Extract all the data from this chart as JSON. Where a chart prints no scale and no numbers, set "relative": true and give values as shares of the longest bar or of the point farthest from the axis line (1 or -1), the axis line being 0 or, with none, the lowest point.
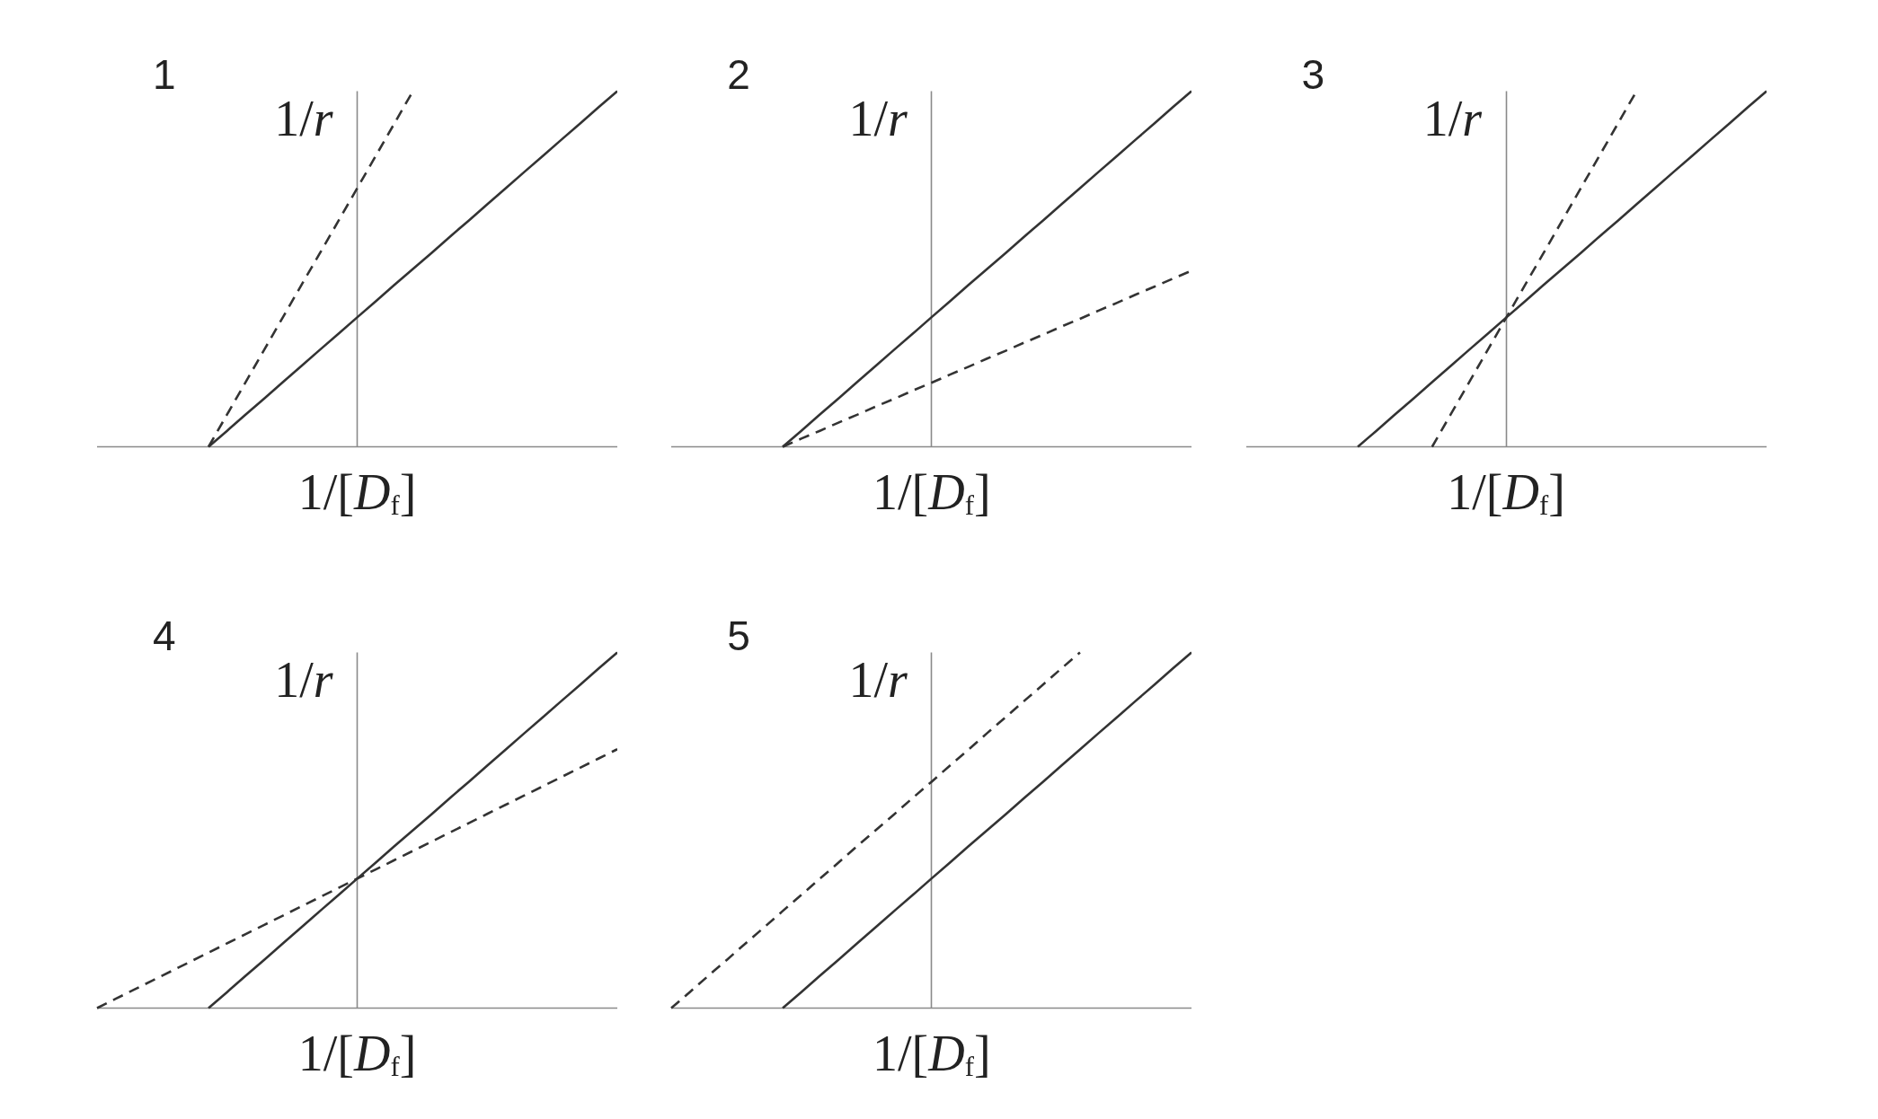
{
  "chart_data": [
    {
      "type": "line",
      "title": "1",
      "xlabel": "1/[D$_{f}$]",
      "ylabel": "1/r",
      "relative": true,
      "marker": "none",
      "categories": [
        null,
        null,
        null,
        null,
        null,
        null,
        null,
        null,
        null,
        null,
        null,
        null,
        null,
        null,
        null,
        null,
        null,
        null,
        null,
        null,
        null,
        null,
        null,
        null,
        null,
        null,
        null,
        null,
        null
      ],
      "series": [
        {
          "color": "#333333",
          "line_style": "solid",
          "values": [
            null,
            null,
            null,
            null,
            null,
            null,
            0,
            0.045,
            0.091,
            0.136,
            0.182,
            0.227,
            0.273,
            0.318,
            0.364,
            0.409,
            0.455,
            0.5,
            0.545,
            0.591,
            0.636,
            0.682,
            0.727,
            0.773,
            0.818,
            0.864,
            0.909,
            0.955,
            1
          ]
        },
        {
          "color": "#333333",
          "line_style": "dashed",
          "values": [
            null,
            null,
            null,
            null,
            null,
            null,
            0,
            0.091,
            0.182,
            0.273,
            0.364,
            0.455,
            0.545,
            0.636,
            0.727,
            0.818,
            0.909,
            1,
            null,
            null,
            null,
            null,
            null,
            null,
            null,
            null,
            null,
            null,
            null
          ]
        }
      ]
    },
    {
      "type": "line",
      "title": "2",
      "xlabel": "1/[D$_{f}$]",
      "ylabel": "1/r",
      "relative": true,
      "marker": "none",
      "categories": [
        null,
        null,
        null,
        null,
        null,
        null,
        null,
        null,
        null,
        null,
        null,
        null,
        null,
        null,
        null,
        null,
        null,
        null,
        null,
        null,
        null,
        null,
        null,
        null,
        null,
        null,
        null,
        null,
        null
      ],
      "series": [
        {
          "color": "#333333",
          "line_style": "solid",
          "values": [
            null,
            null,
            null,
            null,
            null,
            null,
            0,
            0.045,
            0.091,
            0.136,
            0.182,
            0.227,
            0.273,
            0.318,
            0.364,
            0.409,
            0.455,
            0.5,
            0.545,
            0.591,
            0.636,
            0.682,
            0.727,
            0.773,
            0.818,
            0.864,
            0.909,
            0.955,
            1
          ]
        },
        {
          "color": "#333333",
          "line_style": "dashed",
          "values": [
            null,
            null,
            null,
            null,
            null,
            null,
            0,
            0.023,
            0.045,
            0.068,
            0.09,
            0.113,
            0.135,
            0.158,
            0.18,
            0.203,
            0.225,
            0.248,
            0.27,
            0.293,
            0.315,
            0.338,
            0.36,
            0.383,
            0.405,
            0.428,
            0.45,
            0.473,
            0.495
          ]
        }
      ]
    },
    {
      "type": "line",
      "title": "3",
      "xlabel": "1/[D$_{f}$]",
      "ylabel": "1/r",
      "relative": true,
      "marker": "none",
      "categories": [
        null,
        null,
        null,
        null,
        null,
        null,
        null,
        null,
        null,
        null,
        null,
        null,
        null,
        null,
        null,
        null,
        null,
        null,
        null,
        null,
        null,
        null,
        null,
        null,
        null,
        null,
        null,
        null,
        null
      ],
      "series": [
        {
          "color": "#333333",
          "line_style": "solid",
          "values": [
            null,
            null,
            null,
            null,
            null,
            null,
            0,
            0.045,
            0.091,
            0.136,
            0.182,
            0.227,
            0.273,
            0.318,
            0.364,
            0.409,
            0.455,
            0.5,
            0.545,
            0.591,
            0.636,
            0.682,
            0.727,
            0.773,
            0.818,
            0.864,
            0.909,
            0.955,
            1
          ]
        },
        {
          "color": "#333333",
          "line_style": "dashed",
          "values": [
            null,
            null,
            null,
            null,
            null,
            null,
            null,
            null,
            null,
            null,
            0,
            0.091,
            0.182,
            0.273,
            0.364,
            0.455,
            0.545,
            0.636,
            0.727,
            0.818,
            0.909,
            1,
            null,
            null,
            null,
            null,
            null,
            null,
            null
          ]
        }
      ]
    },
    {
      "type": "line",
      "title": "4",
      "xlabel": "1/[D$_{f}$]",
      "ylabel": "1/r",
      "relative": true,
      "marker": "none",
      "categories": [
        null,
        null,
        null,
        null,
        null,
        null,
        null,
        null,
        null,
        null,
        null,
        null,
        null,
        null,
        null,
        null,
        null,
        null,
        null,
        null,
        null,
        null,
        null,
        null,
        null,
        null,
        null,
        null,
        null
      ],
      "series": [
        {
          "color": "#333333",
          "line_style": "solid",
          "values": [
            null,
            null,
            null,
            null,
            null,
            null,
            0,
            0.045,
            0.091,
            0.136,
            0.182,
            0.227,
            0.273,
            0.318,
            0.364,
            0.409,
            0.455,
            0.5,
            0.545,
            0.591,
            0.636,
            0.682,
            0.727,
            0.773,
            0.818,
            0.864,
            0.909,
            0.955,
            1
          ]
        },
        {
          "color": "#333333",
          "line_style": "dashed",
          "values": [
            0,
            0.026,
            0.052,
            0.078,
            0.104,
            0.13,
            0.156,
            0.182,
            0.208,
            0.234,
            0.26,
            0.286,
            0.312,
            0.338,
            0.364,
            0.39,
            0.416,
            0.442,
            0.468,
            0.494,
            0.52,
            0.546,
            0.572,
            0.598,
            0.624,
            0.65,
            0.676,
            0.702,
            0.728
          ]
        }
      ]
    },
    {
      "type": "line",
      "title": "5",
      "xlabel": "1/[D$_{f}$]",
      "ylabel": "1/r",
      "relative": true,
      "marker": "none",
      "categories": [
        null,
        null,
        null,
        null,
        null,
        null,
        null,
        null,
        null,
        null,
        null,
        null,
        null,
        null,
        null,
        null,
        null,
        null,
        null,
        null,
        null,
        null,
        null,
        null,
        null,
        null,
        null,
        null,
        null
      ],
      "series": [
        {
          "color": "#333333",
          "line_style": "solid",
          "values": [
            null,
            null,
            null,
            null,
            null,
            null,
            0,
            0.045,
            0.091,
            0.136,
            0.182,
            0.227,
            0.273,
            0.318,
            0.364,
            0.409,
            0.455,
            0.5,
            0.545,
            0.591,
            0.636,
            0.682,
            0.727,
            0.773,
            0.818,
            0.864,
            0.909,
            0.955,
            1
          ]
        },
        {
          "color": "#333333",
          "line_style": "dashed",
          "values": [
            0,
            0.045,
            0.091,
            0.136,
            0.182,
            0.227,
            0.273,
            0.318,
            0.364,
            0.409,
            0.455,
            0.5,
            0.545,
            0.591,
            0.636,
            0.682,
            0.727,
            0.773,
            0.818,
            0.864,
            0.909,
            0.955,
            1,
            null,
            null,
            null,
            null,
            null,
            null
          ]
        }
      ]
    }
  ]
}
